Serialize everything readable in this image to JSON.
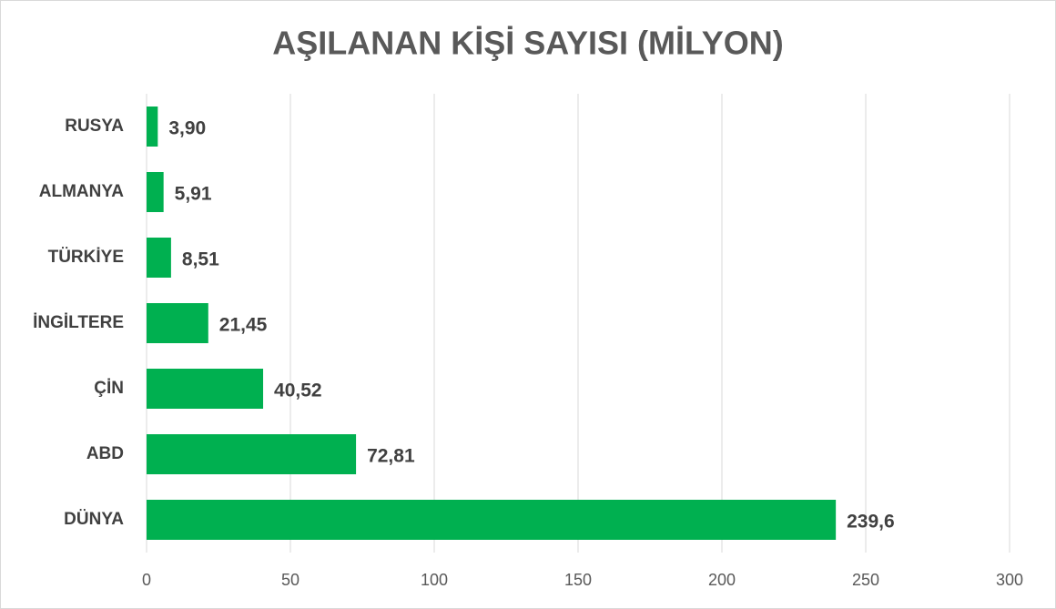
{
  "chart_data": {
    "type": "bar",
    "orientation": "horizontal",
    "title": "AŞILANAN KİŞİ SAYISI (MİLYON)",
    "categories": [
      "RUSYA",
      "ALMANYA",
      "TÜRKİYE",
      "İNGİLTERE",
      "ÇİN",
      "ABD",
      "DÜNYA"
    ],
    "values": [
      3.9,
      5.91,
      8.51,
      21.45,
      40.52,
      72.81,
      239.6
    ],
    "value_labels": [
      "3,90",
      "5,91",
      "8,51",
      "21,45",
      "40,52",
      "72,81",
      "239,6"
    ],
    "color": "#00b050",
    "xlim": [
      0,
      300
    ],
    "xticks": [
      0,
      50,
      100,
      150,
      200,
      250,
      300
    ],
    "grid": true
  }
}
